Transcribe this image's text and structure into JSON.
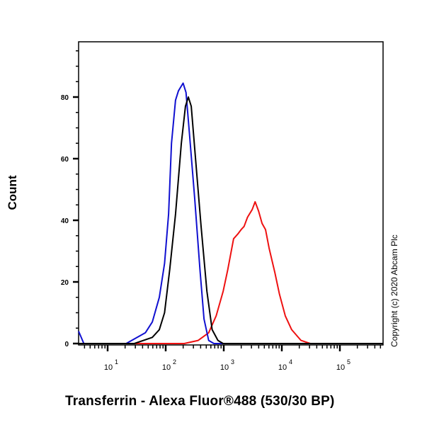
{
  "chart_data": {
    "type": "line",
    "title": "",
    "xlabel": "Transferrin - Alexa Fluor®488 (530/30 BP)",
    "ylabel": "Count",
    "xscale": "log",
    "xlim_log10": [
      0.5,
      5.75
    ],
    "ylim": [
      0,
      100
    ],
    "x_ticks": [
      {
        "label_base": "10",
        "label_exp": "1",
        "log10": 1
      },
      {
        "label_base": "10",
        "label_exp": "2",
        "log10": 2
      },
      {
        "label_base": "10",
        "label_exp": "3",
        "log10": 3
      },
      {
        "label_base": "10",
        "label_exp": "4",
        "log10": 4
      },
      {
        "label_base": "10",
        "label_exp": "5",
        "log10": 5
      }
    ],
    "y_ticks": [
      0,
      20,
      40,
      60,
      80
    ],
    "grid": false,
    "legend": null,
    "annotation": "Copyright (c) 2020 Abcam Plc",
    "series": [
      {
        "name": "blue",
        "color": "#1010d0",
        "points_log10x_y": [
          [
            0.5,
            4
          ],
          [
            0.59,
            0
          ],
          [
            1.32,
            0
          ],
          [
            1.65,
            3.5
          ],
          [
            1.77,
            7
          ],
          [
            1.89,
            15
          ],
          [
            1.98,
            26
          ],
          [
            2.05,
            42
          ],
          [
            2.1,
            65
          ],
          [
            2.17,
            79
          ],
          [
            2.22,
            82
          ],
          [
            2.3,
            84.5
          ],
          [
            2.35,
            81.5
          ],
          [
            2.41,
            68
          ],
          [
            2.5,
            47
          ],
          [
            2.59,
            24
          ],
          [
            2.66,
            8
          ],
          [
            2.74,
            1
          ],
          [
            2.83,
            0
          ],
          [
            5.75,
            0
          ]
        ]
      },
      {
        "name": "black",
        "color": "#000000",
        "points_log10x_y": [
          [
            0.5,
            0
          ],
          [
            1.46,
            0
          ],
          [
            1.77,
            2
          ],
          [
            1.89,
            4.5
          ],
          [
            1.98,
            10
          ],
          [
            2.07,
            24
          ],
          [
            2.17,
            42
          ],
          [
            2.27,
            65
          ],
          [
            2.34,
            77
          ],
          [
            2.39,
            80
          ],
          [
            2.44,
            77
          ],
          [
            2.51,
            61
          ],
          [
            2.61,
            38
          ],
          [
            2.71,
            17
          ],
          [
            2.8,
            4.5
          ],
          [
            2.9,
            1
          ],
          [
            2.99,
            0
          ],
          [
            5.75,
            0
          ]
        ]
      },
      {
        "name": "red",
        "color": "#ee1111",
        "points_log10x_y": [
          [
            0.5,
            0
          ],
          [
            2.32,
            0
          ],
          [
            2.56,
            1
          ],
          [
            2.74,
            3.5
          ],
          [
            2.87,
            9
          ],
          [
            2.99,
            17
          ],
          [
            3.07,
            24
          ],
          [
            3.17,
            34
          ],
          [
            3.24,
            35.5
          ],
          [
            3.3,
            37
          ],
          [
            3.35,
            38
          ],
          [
            3.41,
            41
          ],
          [
            3.49,
            43.5
          ],
          [
            3.54,
            46
          ],
          [
            3.6,
            43
          ],
          [
            3.66,
            39
          ],
          [
            3.72,
            37
          ],
          [
            3.78,
            31
          ],
          [
            3.88,
            23
          ],
          [
            3.96,
            16
          ],
          [
            4.06,
            9
          ],
          [
            4.17,
            4.5
          ],
          [
            4.33,
            1
          ],
          [
            4.49,
            0
          ],
          [
            5.75,
            0
          ]
        ]
      }
    ]
  },
  "labels": {
    "ylabel": "Count",
    "xlabel": "Transferrin - Alexa Fluor®488 (530/30 BP)",
    "copyright": "Copyright (c) 2020 Abcam Plc"
  }
}
